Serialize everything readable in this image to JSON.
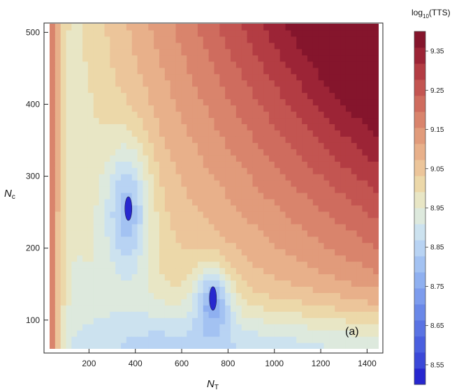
{
  "chart_data": {
    "type": "heatmap",
    "subtype": "filled-contour",
    "panel_label": "(a)",
    "xlabel_main": "N",
    "xlabel_sub": "T",
    "ylabel_main": "N",
    "ylabel_sub": "c",
    "xlim": [
      30,
      1450
    ],
    "ylim": [
      60,
      512
    ],
    "x_ticks": [
      200,
      400,
      600,
      800,
      1000,
      1200,
      1400
    ],
    "y_ticks": [
      100,
      200,
      300,
      400,
      500
    ],
    "colorbar": {
      "title_main": "log",
      "title_sub": "10",
      "title_rest": "(TTS)",
      "range": [
        8.5,
        9.4
      ],
      "labels": [
        "9.35",
        "9.25",
        "9.15",
        "9.05",
        "8.95",
        "8.85",
        "8.75",
        "8.65",
        "8.55"
      ],
      "colors": [
        "#2727cf",
        "#3b48d8",
        "#4a5fdf",
        "#5a73e3",
        "#6a88e8",
        "#7d9ced",
        "#8fb0f0",
        "#a3c2f2",
        "#b8d3f3",
        "#cce2ef",
        "#dde9dd",
        "#e8e6c5",
        "#ecd8a9",
        "#ecc59a",
        "#e8b08a",
        "#e19b7b",
        "#d9846c",
        "#cf6c5e",
        "#c35551",
        "#b33c43",
        "#9c2436",
        "#85152c"
      ]
    },
    "minima": [
      {
        "x": 370,
        "y": 255,
        "value": 8.52
      },
      {
        "x": 735,
        "y": 130,
        "value": 8.52
      }
    ],
    "color_map": "blue (low) to red (high)"
  }
}
